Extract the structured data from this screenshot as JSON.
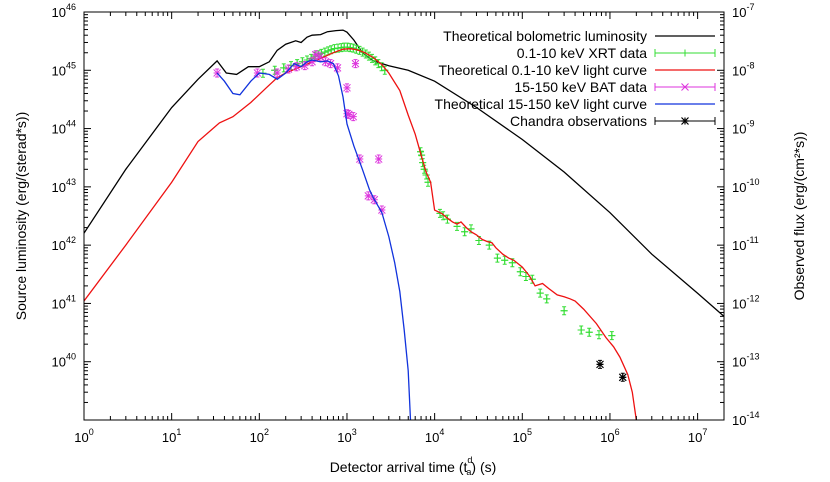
{
  "chart_data": {
    "type": "line",
    "xlabel": "Detector arrival time (t",
    "xlabel_sup": "d",
    "xlabel_sub": "a",
    "xlabel_suffix": ") (s)",
    "ylabel": "Source luminosity (erg/(sterad*s))",
    "y2label": "Observed flux (erg/(cm²*s))",
    "xscale": "log",
    "yscale": "log",
    "xlim": [
      1,
      20000000
    ],
    "ylim": [
      1e+39,
      1e+46
    ],
    "y2lim": [
      1e-14,
      1e-07
    ],
    "x_ticks": [
      {
        "value": 1,
        "base": "10",
        "exp": "0"
      },
      {
        "value": 10,
        "base": "10",
        "exp": "1"
      },
      {
        "value": 100,
        "base": "10",
        "exp": "2"
      },
      {
        "value": 1000,
        "base": "10",
        "exp": "3"
      },
      {
        "value": 10000,
        "base": "10",
        "exp": "4"
      },
      {
        "value": 100000,
        "base": "10",
        "exp": "5"
      },
      {
        "value": 1000000,
        "base": "10",
        "exp": "6"
      },
      {
        "value": 10000000,
        "base": "10",
        "exp": "7"
      }
    ],
    "y_ticks": [
      {
        "value": 1e+40,
        "base": "10",
        "exp": "40"
      },
      {
        "value": 1e+41,
        "base": "10",
        "exp": "41"
      },
      {
        "value": 1e+42,
        "base": "10",
        "exp": "42"
      },
      {
        "value": 1e+43,
        "base": "10",
        "exp": "43"
      },
      {
        "value": 1e+44,
        "base": "10",
        "exp": "44"
      },
      {
        "value": 1e+45,
        "base": "10",
        "exp": "45"
      },
      {
        "value": 1e+46,
        "base": "10",
        "exp": "46"
      }
    ],
    "y2_ticks": [
      {
        "value": 1e-14,
        "base": "10",
        "exp": "-14"
      },
      {
        "value": 1e-13,
        "base": "10",
        "exp": "-13"
      },
      {
        "value": 1e-12,
        "base": "10",
        "exp": "-12"
      },
      {
        "value": 1e-11,
        "base": "10",
        "exp": "-11"
      },
      {
        "value": 1e-10,
        "base": "10",
        "exp": "-10"
      },
      {
        "value": 1e-09,
        "base": "10",
        "exp": "-9"
      },
      {
        "value": 1e-08,
        "base": "10",
        "exp": "-8"
      },
      {
        "value": 1e-07,
        "base": "10",
        "exp": "-7"
      }
    ],
    "legend_position": "top-right",
    "series": [
      {
        "name": "Theoretical bolometric luminosity",
        "kind": "line",
        "color": "#000000",
        "points": [
          [
            1,
            1.6e+42
          ],
          [
            3,
            2e+43
          ],
          [
            10,
            2.3e+44
          ],
          [
            20,
            7e+44
          ],
          [
            33,
            1.45e+45
          ],
          [
            42,
            9e+44
          ],
          [
            55,
            8.5e+44
          ],
          [
            75,
            1.15e+45
          ],
          [
            100,
            1.15e+45
          ],
          [
            130,
            1.4e+45
          ],
          [
            160,
            2.2e+45
          ],
          [
            200,
            2.8e+45
          ],
          [
            260,
            3.2e+45
          ],
          [
            300,
            3e+45
          ],
          [
            350,
            3.7e+45
          ],
          [
            400,
            4e+45
          ],
          [
            500,
            4.1e+45
          ],
          [
            600,
            4.6e+45
          ],
          [
            750,
            4.8e+45
          ],
          [
            900,
            4.9e+45
          ],
          [
            1000,
            4.5e+45
          ],
          [
            1200,
            3.3e+45
          ],
          [
            1500,
            2e+45
          ],
          [
            2000,
            1.45e+45
          ],
          [
            3000,
            1.2e+45
          ],
          [
            5000,
            1e+45
          ],
          [
            10000,
            6.5e+44
          ],
          [
            30000,
            2.3e+44
          ],
          [
            100000,
            6.5e+43
          ],
          [
            300000,
            1.8e+43
          ],
          [
            1000000,
            3.6e+42
          ],
          [
            3000000,
            7e+41
          ],
          [
            10000000,
            1.5e+41
          ],
          [
            20000000,
            6e+40
          ]
        ]
      },
      {
        "name": "0.1-10 keV XRT data",
        "kind": "errorbar",
        "color": "#33dd33",
        "marker": "+",
        "points": [
          [
            110,
            8.9e+44
          ],
          [
            150,
            1e+45
          ],
          [
            190,
            1.1e+45
          ],
          [
            230,
            1.2e+45
          ],
          [
            270,
            1.3e+45
          ],
          [
            310,
            1.4e+45
          ],
          [
            350,
            1.5e+45
          ],
          [
            390,
            1.6e+45
          ],
          [
            430,
            1.75e+45
          ],
          [
            470,
            1.85e+45
          ],
          [
            510,
            1.95e+45
          ],
          [
            560,
            2.05e+45
          ],
          [
            610,
            2.15e+45
          ],
          [
            660,
            2.25e+45
          ],
          [
            720,
            2.35e+45
          ],
          [
            790,
            2.4e+45
          ],
          [
            860,
            2.45e+45
          ],
          [
            930,
            2.5e+45
          ],
          [
            1010,
            2.5e+45
          ],
          [
            1090,
            2.45e+45
          ],
          [
            1180,
            2.4e+45
          ],
          [
            1280,
            2.3e+45
          ],
          [
            1390,
            2.2e+45
          ],
          [
            1510,
            2.05e+45
          ],
          [
            1640,
            1.9e+45
          ],
          [
            1780,
            1.75e+45
          ],
          [
            1930,
            1.6e+45
          ],
          [
            2100,
            1.45e+45
          ],
          [
            2280,
            1.3e+45
          ],
          [
            2480,
            1.15e+45
          ],
          [
            2700,
            1e+45
          ],
          [
            6900,
            4e+43
          ],
          [
            7100,
            3.5e+43
          ],
          [
            7300,
            2.6e+43
          ],
          [
            7600,
            2e+43
          ],
          [
            8000,
            1.6e+43
          ],
          [
            8400,
            1.2e+43
          ],
          [
            11500,
            3.5e+42
          ],
          [
            12500,
            3.2e+42
          ],
          [
            14000,
            2.8e+42
          ],
          [
            18000,
            2.1e+42
          ],
          [
            22000,
            1.7e+42
          ],
          [
            26000,
            1.9e+42
          ],
          [
            32000,
            1.2e+42
          ],
          [
            42000,
            1e+42
          ],
          [
            52000,
            6e+41
          ],
          [
            63000,
            5.5e+41
          ],
          [
            77000,
            5e+41
          ],
          [
            95000,
            3.5e+41
          ],
          [
            110000,
            2.9e+41
          ],
          [
            130000,
            2.6e+41
          ],
          [
            160000,
            1.5e+41
          ],
          [
            190000,
            1.2e+41
          ],
          [
            300000,
            7.5e+40
          ],
          [
            470000,
            3.5e+40
          ],
          [
            580000,
            3.2e+40
          ],
          [
            750000,
            2.9e+40
          ],
          [
            1050000,
            2.8e+40
          ]
        ]
      },
      {
        "name": "Theoretical 0.1-10 keV light curve",
        "kind": "line",
        "color": "#ee1111",
        "points": [
          [
            1,
            1.1e+41
          ],
          [
            3,
            1e+42
          ],
          [
            10,
            1.2e+43
          ],
          [
            20,
            6e+43
          ],
          [
            35,
            1.25e+44
          ],
          [
            50,
            1.6e+44
          ],
          [
            80,
            2.8e+44
          ],
          [
            120,
            5e+44
          ],
          [
            160,
            7.5e+44
          ],
          [
            200,
            9e+44
          ],
          [
            300,
            1.15e+45
          ],
          [
            500,
            1.6e+45
          ],
          [
            700,
            2e+45
          ],
          [
            900,
            2.3e+45
          ],
          [
            1100,
            2.35e+45
          ],
          [
            1300,
            2.25e+45
          ],
          [
            1600,
            2e+45
          ],
          [
            2000,
            1.65e+45
          ],
          [
            2500,
            1.25e+45
          ],
          [
            3000,
            9e+44
          ],
          [
            4000,
            4.5e+44
          ],
          [
            5000,
            1.7e+44
          ],
          [
            6000,
            8e+43
          ],
          [
            7000,
            3.5e+43
          ],
          [
            8000,
            1.8e+43
          ],
          [
            9000,
            1.2e+43
          ],
          [
            10000,
            4e+42
          ],
          [
            12000,
            3.5e+42
          ],
          [
            14000,
            2.9e+42
          ],
          [
            16000,
            2.5e+42
          ],
          [
            18000,
            2.3e+42
          ],
          [
            20000,
            2.5e+42
          ],
          [
            23000,
            2e+42
          ],
          [
            26000,
            1.7e+42
          ],
          [
            30000,
            1.5e+42
          ],
          [
            35000,
            1.25e+42
          ],
          [
            40000,
            1.15e+42
          ],
          [
            45000,
            1.1e+42
          ],
          [
            50000,
            9e+41
          ],
          [
            60000,
            7e+41
          ],
          [
            70000,
            6e+41
          ],
          [
            80000,
            5.5e+41
          ],
          [
            100000,
            4.2e+41
          ],
          [
            120000,
            3e+41
          ],
          [
            140000,
            2e+41
          ],
          [
            170000,
            2.2e+41
          ],
          [
            200000,
            1.8e+41
          ],
          [
            250000,
            1.4e+41
          ],
          [
            300000,
            1.3e+41
          ],
          [
            350000,
            1.2e+41
          ],
          [
            400000,
            1.1e+41
          ],
          [
            500000,
            8e+40
          ],
          [
            700000,
            4.5e+40
          ],
          [
            900000,
            2.6e+40
          ],
          [
            1100000,
            1.8e+40
          ],
          [
            1300000,
            1.2e+40
          ],
          [
            1600000,
            6e+39
          ],
          [
            1800000,
            3e+39
          ],
          [
            2000000,
            1e+39
          ]
        ]
      },
      {
        "name": "15-150 keV BAT data",
        "kind": "errorbar",
        "color": "#dd33dd",
        "marker": "x",
        "points": [
          [
            33,
            9e+44
          ],
          [
            95,
            9e+44
          ],
          [
            160,
            9e+44
          ],
          [
            215,
            1.05e+45
          ],
          [
            265,
            1.15e+45
          ],
          [
            330,
            1.2e+45
          ],
          [
            400,
            1.4e+45
          ],
          [
            440,
            1.85e+45
          ],
          [
            490,
            1.7e+45
          ],
          [
            570,
            1.4e+45
          ],
          [
            650,
            1.3e+45
          ],
          [
            780,
            1.1e+45
          ],
          [
            1050,
            1.75e+44
          ],
          [
            1400,
            3e+43
          ],
          [
            1750,
            7e+42
          ],
          [
            2050,
            6e+42
          ],
          [
            2500,
            4e+42
          ],
          [
            1180,
            1.6e+44
          ],
          [
            1000,
            5e+44
          ],
          [
            1000,
            1.8e+44
          ],
          [
            1250,
            1.3e+45
          ],
          [
            2300,
            3e+43
          ]
        ]
      },
      {
        "name": "Theoretical 15-150 keV light curve",
        "kind": "line",
        "color": "#1133dd",
        "points": [
          [
            33,
            9e+44
          ],
          [
            40,
            6.5e+44
          ],
          [
            50,
            4e+44
          ],
          [
            60,
            3.8e+44
          ],
          [
            80,
            6.5e+44
          ],
          [
            100,
            9e+44
          ],
          [
            130,
            8.5e+44
          ],
          [
            160,
            7e+44
          ],
          [
            200,
            9e+44
          ],
          [
            250,
            1.3e+45
          ],
          [
            300,
            1.15e+45
          ],
          [
            350,
            1.4e+45
          ],
          [
            400,
            1.5e+45
          ],
          [
            500,
            1.4e+45
          ],
          [
            600,
            1.45e+45
          ],
          [
            700,
            1.3e+45
          ],
          [
            800,
            8e+44
          ],
          [
            900,
            3.5e+44
          ],
          [
            1000,
            1.2e+44
          ],
          [
            1200,
            5e+43
          ],
          [
            1500,
            2e+43
          ],
          [
            1800,
            9e+42
          ],
          [
            2000,
            6.5e+42
          ],
          [
            2500,
            3.6e+42
          ],
          [
            3000,
            1.4e+42
          ],
          [
            3500,
            5e+41
          ],
          [
            4000,
            1.6e+41
          ],
          [
            4500,
            3.5e+40
          ],
          [
            5000,
            7e+39
          ],
          [
            5300,
            1e+39
          ]
        ]
      },
      {
        "name": "Chandra observations",
        "kind": "errorbar",
        "color": "#000000",
        "marker": "*",
        "points": [
          [
            770000,
            9e+39
          ],
          [
            1400000,
            5.4e+39
          ]
        ]
      }
    ]
  }
}
